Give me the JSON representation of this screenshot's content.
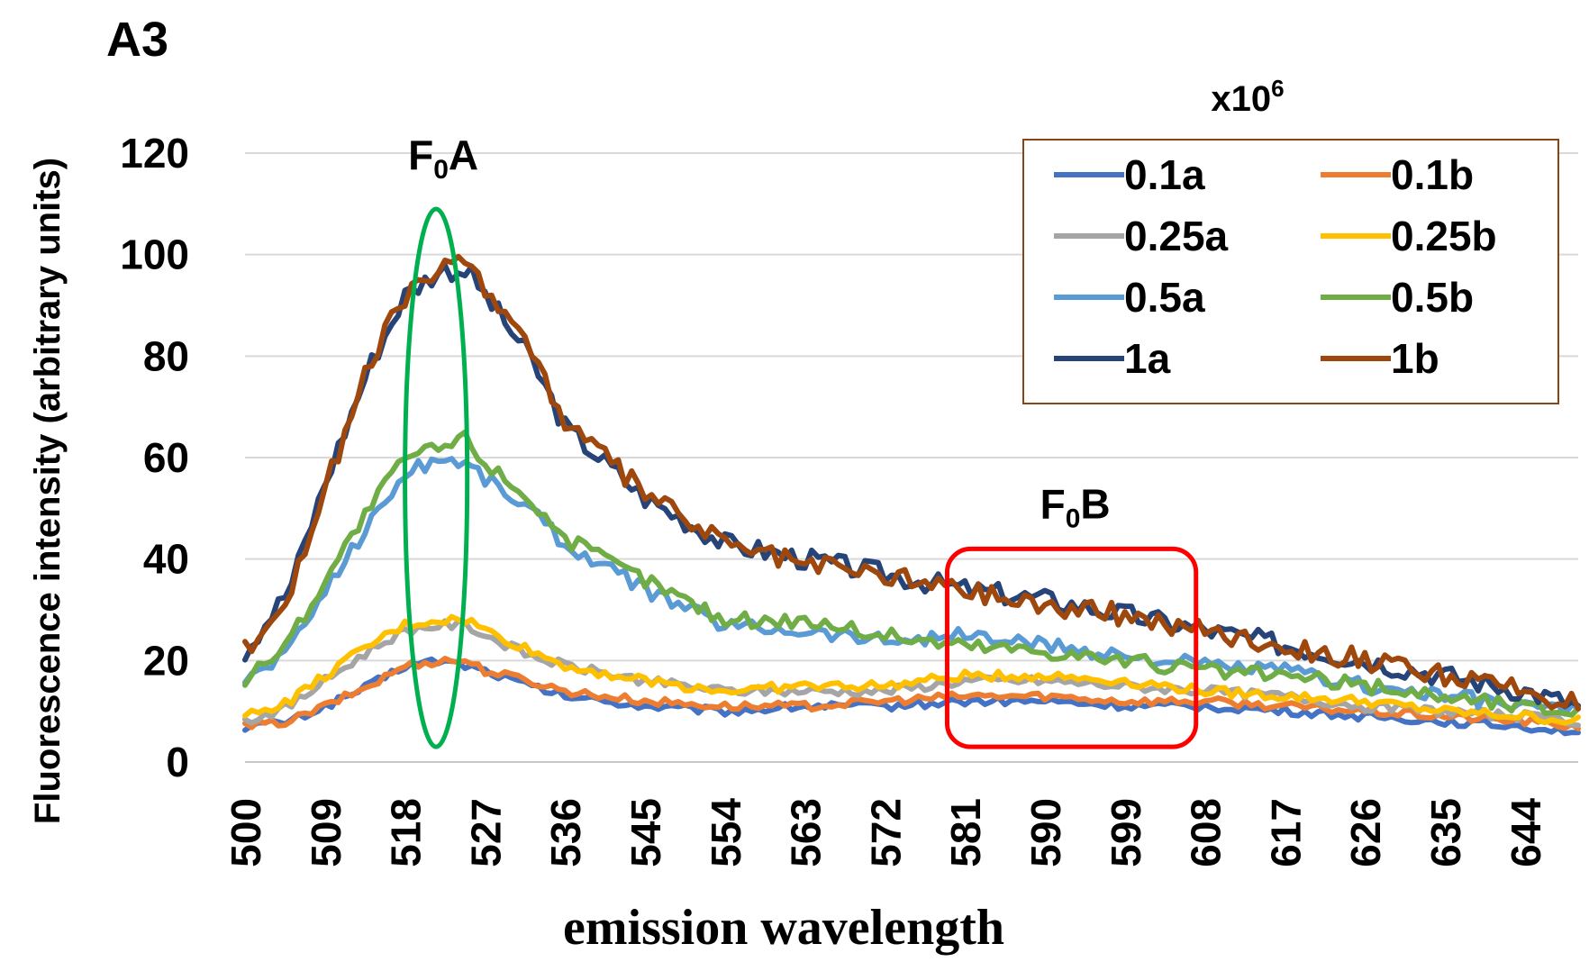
{
  "chart_data": {
    "type": "line",
    "panel_label": "A3",
    "xlabel": "emission wavelength",
    "ylabel": "Fluorescence intensity (arbitrary units)",
    "xlim": [
      500,
      650
    ],
    "ylim": [
      0,
      120
    ],
    "x_ticks": [
      500,
      509,
      518,
      527,
      536,
      545,
      554,
      563,
      572,
      581,
      590,
      599,
      608,
      617,
      626,
      635,
      644
    ],
    "y_ticks": [
      0,
      20,
      40,
      60,
      80,
      100,
      120
    ],
    "gridlines": "horizontal",
    "legend": {
      "title_base": "x10",
      "title_exp": "6",
      "position": "top-right"
    },
    "annotations": [
      {
        "kind": "ellipse",
        "label_main": "F",
        "label_sub": "0",
        "label_tail": "A",
        "color": "#00B050",
        "x_center": 521.5,
        "x_half": 3.5,
        "y_range": [
          3,
          109
        ]
      },
      {
        "kind": "rounded-rect",
        "label_main": "F",
        "label_sub": "0",
        "label_tail": "B",
        "color": "#FF0000",
        "x_range": [
          579,
          607
        ],
        "y_range": [
          3,
          42
        ]
      }
    ],
    "x": [
      500,
      505,
      509,
      514,
      518,
      522,
      525,
      527,
      532,
      536,
      545,
      554,
      563,
      572,
      581,
      590,
      599,
      608,
      617,
      626,
      635,
      644,
      650
    ],
    "series": [
      {
        "name": "0.1a",
        "color": "#4472C4",
        "values": [
          7,
          8,
          11,
          15,
          19,
          20,
          19,
          18,
          15,
          13,
          11,
          10,
          11,
          11,
          12,
          12,
          11,
          11,
          10,
          9,
          8,
          7,
          6
        ]
      },
      {
        "name": "0.1b",
        "color": "#ED7D31",
        "values": [
          7,
          8,
          11,
          15,
          19,
          20,
          20,
          18,
          16,
          14,
          12,
          11,
          11,
          12,
          13,
          13,
          12,
          12,
          11,
          10,
          9,
          8,
          7
        ]
      },
      {
        "name": "0.25a",
        "color": "#A5A5A5",
        "values": [
          8,
          11,
          16,
          22,
          26,
          27,
          27,
          25,
          21,
          19,
          16,
          14,
          14,
          14,
          16,
          16,
          15,
          14,
          13,
          11,
          10,
          9,
          8
        ]
      },
      {
        "name": "0.25b",
        "color": "#FFC000",
        "values": [
          9,
          12,
          17,
          23,
          27,
          28,
          28,
          26,
          22,
          19,
          16,
          14,
          15,
          15,
          17,
          17,
          16,
          14,
          13,
          12,
          10,
          9,
          8
        ]
      },
      {
        "name": "0.5a",
        "color": "#5B9BD5",
        "values": [
          16,
          22,
          34,
          47,
          57,
          60,
          59,
          56,
          50,
          43,
          34,
          27,
          26,
          24,
          25,
          23,
          21,
          19,
          18,
          15,
          13,
          11,
          10
        ]
      },
      {
        "name": "0.5b",
        "color": "#70AD47",
        "values": [
          16,
          24,
          36,
          50,
          60,
          62,
          64,
          59,
          52,
          44,
          36,
          28,
          28,
          25,
          23,
          22,
          20,
          18,
          17,
          15,
          13,
          11,
          10
        ]
      },
      {
        "name": "1a",
        "color": "#264478",
        "values": [
          22,
          34,
          55,
          78,
          92,
          97,
          97,
          92,
          80,
          66,
          52,
          43,
          40,
          37,
          34,
          32,
          29,
          26,
          23,
          20,
          17,
          14,
          11
        ]
      },
      {
        "name": "1b",
        "color": "#9E480E",
        "values": [
          22,
          33,
          54,
          78,
          92,
          97,
          98,
          94,
          82,
          67,
          53,
          43,
          39,
          37,
          34,
          31,
          29,
          26,
          23,
          20,
          17,
          14,
          11
        ]
      }
    ]
  }
}
